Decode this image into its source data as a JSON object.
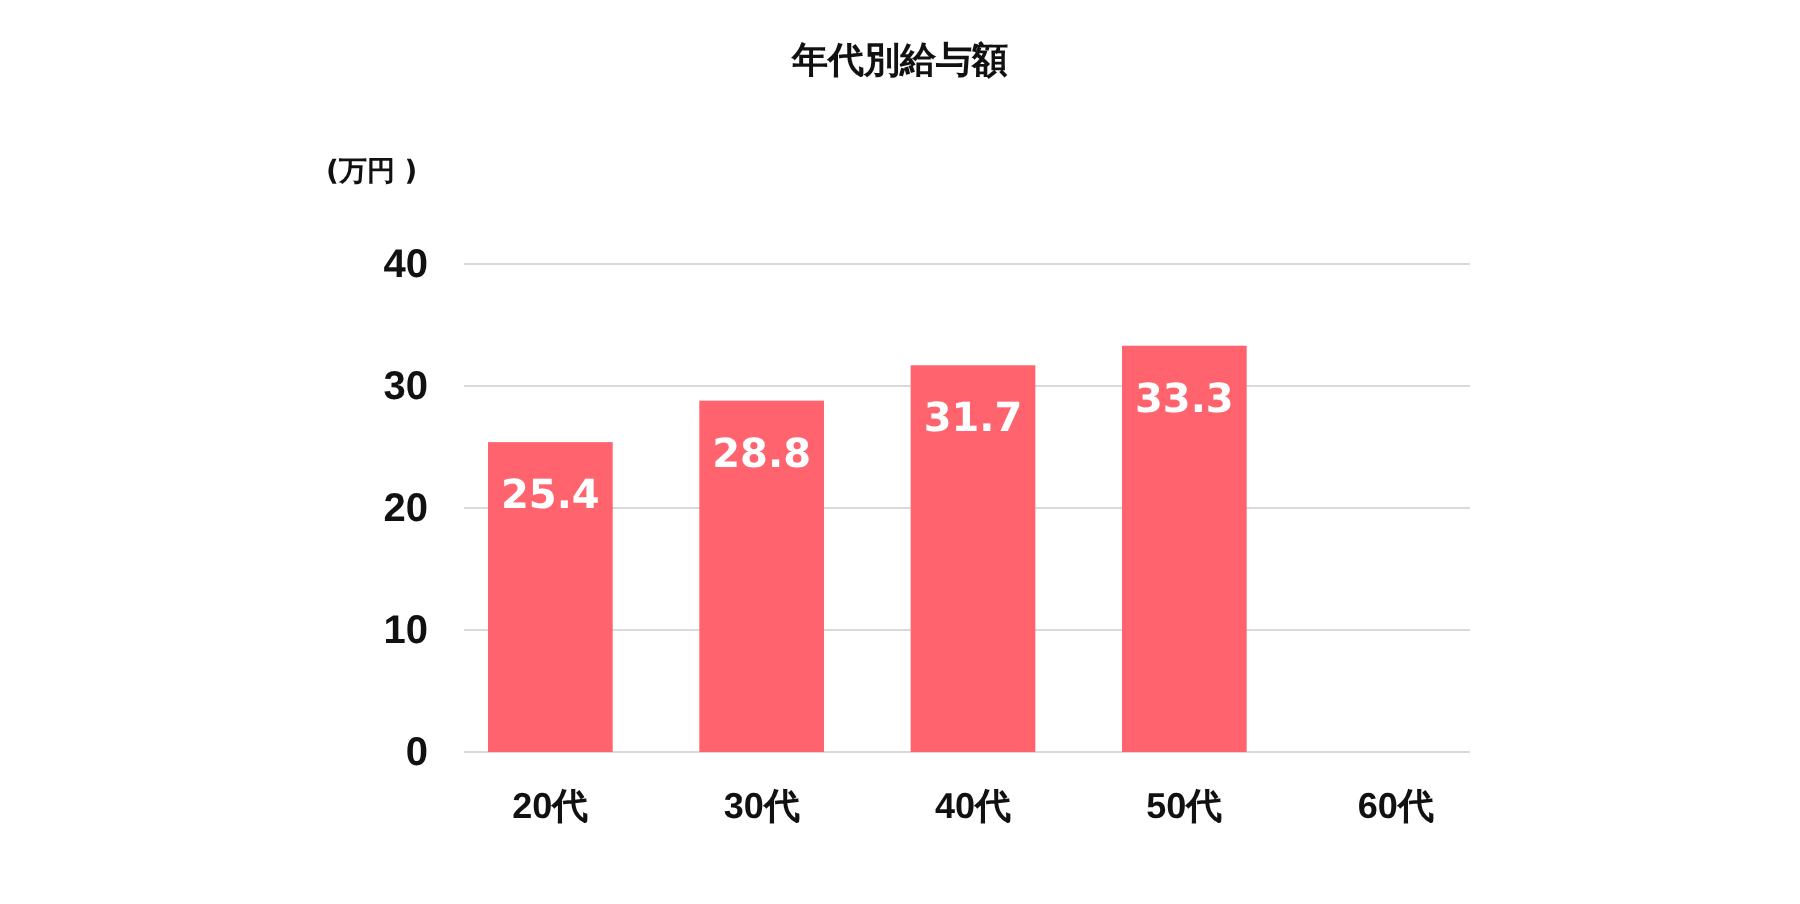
{
  "chart_data": {
    "type": "bar",
    "title": "年代別給与額",
    "ylabel": "(万円 )",
    "categories": [
      "20代",
      "30代",
      "40代",
      "50代",
      "60代"
    ],
    "values": [
      25.4,
      28.8,
      31.7,
      33.3,
      null
    ],
    "color": "#ff636e",
    "ylim": [
      0,
      40
    ],
    "yticks": [
      0,
      10,
      20,
      30,
      40
    ],
    "grid": "y",
    "data_labels": true
  }
}
